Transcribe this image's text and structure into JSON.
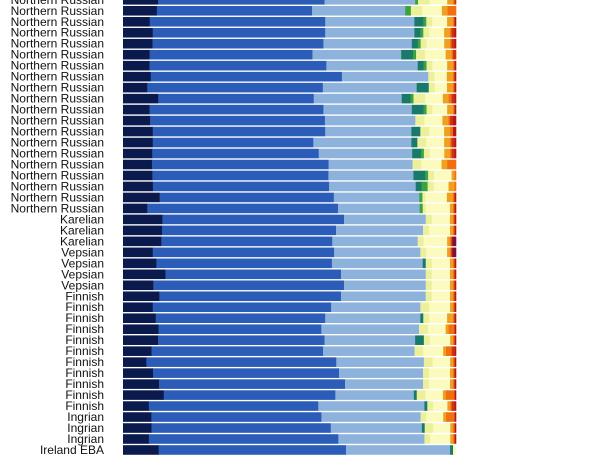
{
  "chart_data": {
    "type": "bar",
    "orientation": "horizontal",
    "stacked": true,
    "normalized": true,
    "xlim": [
      0,
      1
    ],
    "grid": false,
    "legend": "none",
    "categories": [
      "Northern Russian",
      "Northern Russian",
      "Northern Russian",
      "Northern Russian",
      "Northern Russian",
      "Northern Russian",
      "Northern Russian",
      "Northern Russian",
      "Northern Russian",
      "Northern Russian",
      "Northern Russian",
      "Northern Russian",
      "Northern Russian",
      "Northern Russian",
      "Northern Russian",
      "Northern Russian",
      "Northern Russian",
      "Northern Russian",
      "Northern Russian",
      "Northern Russian",
      "Karelian",
      "Karelian",
      "Karelian",
      "Vepsian",
      "Vepsian",
      "Vepsian",
      "Vepsian",
      "Finnish",
      "Finnish",
      "Finnish",
      "Finnish",
      "Finnish",
      "Finnish",
      "Finnish",
      "Finnish",
      "Finnish",
      "Finnish",
      "Finnish",
      "Ingrian",
      "Ingrian",
      "Ingrian",
      "Ireland EBA"
    ],
    "colors": [
      "#0b1a4d",
      "#2b5cb8",
      "#8db3dd",
      "#1a7a6a",
      "#39a33c",
      "#ecf09a",
      "#fbfbc0",
      "#f0a020",
      "#f07010",
      "#d03010",
      "#b01818",
      "#7a1040"
    ],
    "series": [
      {
        "values": [
          0.12,
          0.12,
          0.09,
          0.1,
          0.1,
          0.09,
          0.09,
          0.09,
          0.08,
          0.12,
          0.09,
          0.09,
          0.1,
          0.1,
          0.1,
          0.1,
          0.1,
          0.1,
          0.12,
          0.08,
          0.13,
          0.13,
          0.13,
          0.1,
          0.11,
          0.14,
          0.1,
          0.12,
          0.1,
          0.11,
          0.12,
          0.12,
          0.1,
          0.08,
          0.1,
          0.12,
          0.14,
          0.09,
          0.1,
          0.1,
          0.09,
          0.12
        ]
      },
      {
        "values": [
          0.57,
          0.55,
          0.59,
          0.58,
          0.58,
          0.55,
          0.6,
          0.62,
          0.58,
          0.53,
          0.59,
          0.58,
          0.58,
          0.54,
          0.57,
          0.61,
          0.6,
          0.59,
          0.57,
          0.63,
          0.6,
          0.58,
          0.58,
          0.61,
          0.58,
          0.58,
          0.63,
          0.6,
          0.6,
          0.57,
          0.55,
          0.57,
          0.6,
          0.65,
          0.62,
          0.62,
          0.59,
          0.59,
          0.6,
          0.63,
          0.66,
          0.63
        ]
      },
      {
        "values": [
          0.31,
          0.33,
          0.3,
          0.3,
          0.3,
          0.3,
          0.31,
          0.28,
          0.31,
          0.3,
          0.3,
          0.3,
          0.29,
          0.33,
          0.32,
          0.29,
          0.29,
          0.29,
          0.28,
          0.27,
          0.27,
          0.29,
          0.29,
          0.29,
          0.3,
          0.28,
          0.27,
          0.28,
          0.3,
          0.32,
          0.33,
          0.31,
          0.32,
          0.3,
          0.28,
          0.26,
          0.27,
          0.37,
          0.35,
          0.32,
          0.3,
          0.35
        ]
      },
      {
        "values": [
          0,
          0,
          0.03,
          0.02,
          0.02,
          0.04,
          0.02,
          0,
          0.04,
          0.03,
          0.04,
          0,
          0.03,
          0.02,
          0.03,
          0,
          0.04,
          0.02,
          0,
          0,
          0,
          0,
          0,
          0,
          0.01,
          0,
          0,
          0,
          0,
          0.01,
          0,
          0.03,
          0,
          0,
          0,
          0,
          0.01,
          0.01,
          0,
          0.01,
          0,
          0.01
        ]
      },
      {
        "values": [
          0.01,
          0.02,
          0.01,
          0.01,
          0.01,
          0.01,
          0.01,
          0,
          0,
          0.01,
          0.01,
          0,
          0,
          0,
          0.01,
          0,
          0.01,
          0.02,
          0.01,
          0.01,
          0,
          0,
          0,
          0,
          0,
          0,
          0,
          0,
          0,
          0,
          0,
          0,
          0,
          0,
          0,
          0,
          0,
          0,
          0,
          0,
          0,
          0
        ]
      },
      {
        "values": [
          0.04,
          0.04,
          0.02,
          0.02,
          0.02,
          0.03,
          0.02,
          0.02,
          0.02,
          0.04,
          0.02,
          0.03,
          0.03,
          0.03,
          0.02,
          0.03,
          0.02,
          0.02,
          0.01,
          0.01,
          0.02,
          0.02,
          0.02,
          0.02,
          0.02,
          0.02,
          0.02,
          0.02,
          0.03,
          0.02,
          0.03,
          0.02,
          0.03,
          0.03,
          0.02,
          0.02,
          0.03,
          0.02,
          0.02,
          0.03,
          0.02,
          0
        ]
      },
      {
        "values": [
          0.06,
          0.07,
          0.05,
          0.05,
          0.06,
          0.07,
          0.05,
          0.04,
          0.04,
          0.06,
          0.05,
          0.06,
          0.05,
          0.06,
          0.05,
          0.07,
          0.06,
          0.05,
          0.07,
          0.08,
          0.06,
          0.07,
          0.08,
          0.07,
          0.06,
          0.06,
          0.06,
          0.06,
          0.07,
          0.06,
          0.06,
          0.07,
          0.07,
          0.06,
          0.07,
          0.07,
          0.06,
          0.05,
          0.06,
          0.06,
          0.07,
          0.01
        ]
      },
      {
        "values": [
          0.02,
          0.02,
          0.02,
          0.02,
          0.02,
          0.02,
          0.02,
          0.02,
          0.02,
          0.02,
          0.02,
          0.02,
          0.02,
          0.02,
          0.02,
          0.02,
          0.01,
          0.02,
          0.02,
          0.01,
          0.01,
          0.01,
          0.01,
          0.01,
          0.01,
          0.01,
          0.01,
          0.01,
          0.01,
          0.02,
          0.01,
          0.01,
          0.01,
          0.01,
          0.01,
          0.01,
          0.01,
          0.01,
          0.01,
          0.01,
          0.01,
          0
        ]
      },
      {
        "values": [
          0.005,
          0.03,
          0.005,
          0.005,
          0.005,
          0.005,
          0.005,
          0.005,
          0.005,
          0.01,
          0.005,
          0.005,
          0.01,
          0.005,
          0.005,
          0.03,
          0.005,
          0.005,
          0.005,
          0.005,
          0.005,
          0.005,
          0.005,
          0.005,
          0.005,
          0.005,
          0.005,
          0.005,
          0.005,
          0.005,
          0.02,
          0.005,
          0.02,
          0.005,
          0.005,
          0.005,
          0.03,
          0.005,
          0.03,
          0.005,
          0.005,
          0
        ]
      },
      {
        "values": [
          0.005,
          0,
          0,
          0.01,
          0.01,
          0.01,
          0,
          0,
          0,
          0.01,
          0,
          0.01,
          0,
          0.01,
          0.01,
          0,
          0,
          0,
          0,
          0,
          0,
          0,
          0,
          0,
          0,
          0,
          0,
          0,
          0,
          0,
          0,
          0,
          0.01,
          0,
          0,
          0,
          0,
          0.01,
          0,
          0,
          0,
          0
        ]
      },
      {
        "values": [
          0,
          0,
          0.005,
          0.005,
          0.005,
          0,
          0.005,
          0.005,
          0.005,
          0.005,
          0.005,
          0.01,
          0.01,
          0.005,
          0.005,
          0,
          0,
          0,
          0.005,
          0.005,
          0.005,
          0.005,
          0.005,
          0.005,
          0.005,
          0.005,
          0.005,
          0.005,
          0.005,
          0.005,
          0.005,
          0.005,
          0.005,
          0.005,
          0.005,
          0.005,
          0.005,
          0.005,
          0.005,
          0.005,
          0.005,
          0
        ]
      },
      {
        "values": [
          0,
          0,
          0,
          0,
          0,
          0,
          0,
          0,
          0,
          0,
          0,
          0,
          0,
          0,
          0,
          0,
          0,
          0,
          0,
          0,
          0,
          0,
          0.01,
          0.01,
          0,
          0,
          0,
          0,
          0,
          0,
          0,
          0,
          0,
          0,
          0,
          0,
          0,
          0,
          0,
          0,
          0,
          0
        ]
      }
    ]
  }
}
